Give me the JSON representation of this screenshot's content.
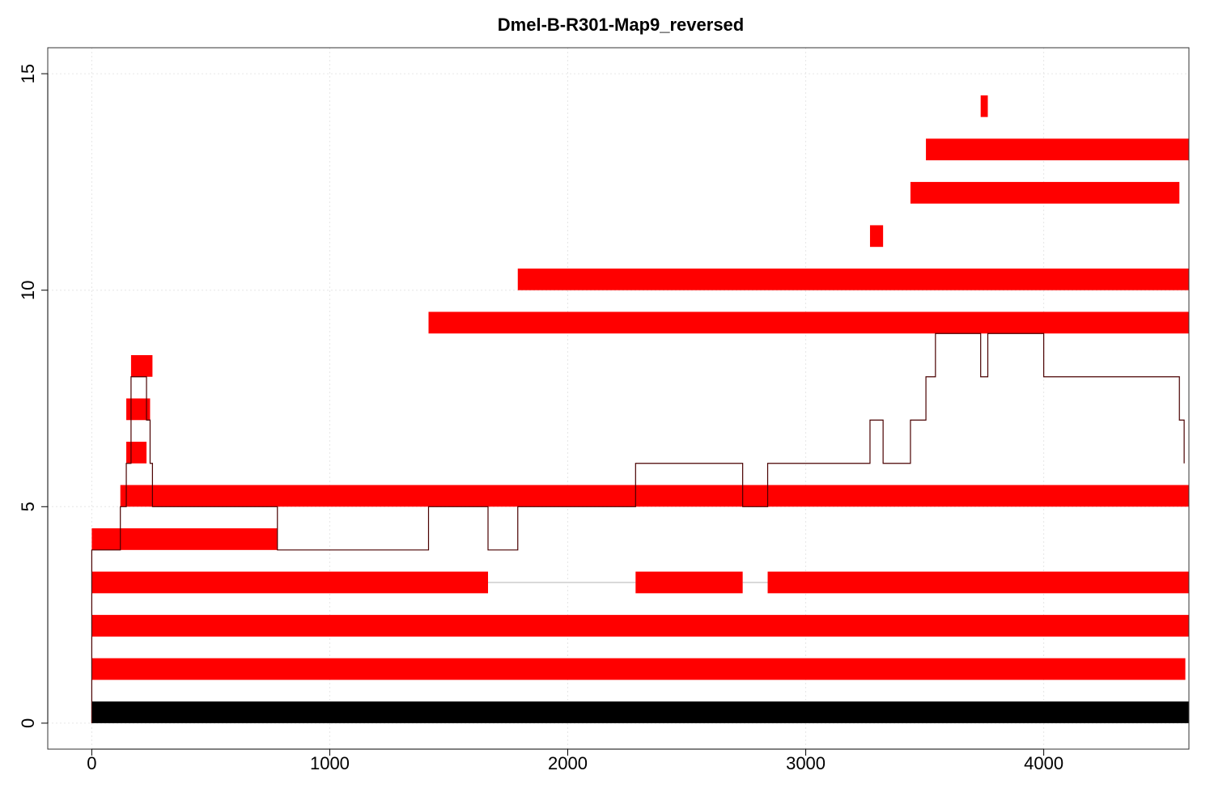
{
  "chart_data": {
    "type": "bar",
    "title": "Dmel-B-R301-Map9_reversed",
    "xlabel": "",
    "ylabel": "",
    "xlim": [
      -185,
      4610
    ],
    "ylim": [
      -0.6,
      15.6
    ],
    "xticks": [
      0,
      1000,
      2000,
      3000,
      4000
    ],
    "yticks": [
      0,
      5,
      10,
      15
    ],
    "grid": true,
    "colors": {
      "reference": "#000000",
      "segment": "#ff0000",
      "gap_line": "#d9d9d9",
      "coverage": "#4a0000"
    },
    "reference_bar": {
      "row": 0,
      "start": 0,
      "end": 4610
    },
    "segments": [
      {
        "row": 1,
        "start": 0,
        "end": 4595
      },
      {
        "row": 2,
        "start": 0,
        "end": 4610
      },
      {
        "row": 3,
        "start": 0,
        "end": 1665
      },
      {
        "row": 3,
        "start": 2285,
        "end": 2735
      },
      {
        "row": 3,
        "start": 2840,
        "end": 4610
      },
      {
        "row": 4,
        "start": 0,
        "end": 780
      },
      {
        "row": 5,
        "start": 120,
        "end": 4610
      },
      {
        "row": 6,
        "start": 145,
        "end": 230
      },
      {
        "row": 7,
        "start": 145,
        "end": 245
      },
      {
        "row": 8,
        "start": 165,
        "end": 255
      },
      {
        "row": 9,
        "start": 1415,
        "end": 4610
      },
      {
        "row": 10,
        "start": 1790,
        "end": 4610
      },
      {
        "row": 11,
        "start": 3270,
        "end": 3325
      },
      {
        "row": 12,
        "start": 3440,
        "end": 4570
      },
      {
        "row": 13,
        "start": 3505,
        "end": 4610
      },
      {
        "row": 14,
        "start": 3735,
        "end": 3765
      }
    ],
    "gaps": [
      {
        "row": 3,
        "start": 1665,
        "end": 2285
      },
      {
        "row": 3,
        "start": 2735,
        "end": 2840
      }
    ],
    "coverage": {
      "x": [
        0,
        0,
        120,
        120,
        145,
        145,
        165,
        165,
        230,
        230,
        245,
        245,
        255,
        255,
        780,
        780,
        1415,
        1415,
        1665,
        1665,
        1790,
        1790,
        2285,
        2285,
        2735,
        2735,
        2840,
        2840,
        3270,
        3270,
        3325,
        3325,
        3440,
        3440,
        3505,
        3505,
        3545,
        3545,
        3735,
        3735,
        3765,
        3765,
        4000,
        4000,
        4570,
        4570,
        4590,
        4590
      ],
      "y": [
        0,
        4,
        4,
        5,
        5,
        6,
        6,
        8,
        8,
        7,
        7,
        6,
        6,
        5,
        5,
        4,
        4,
        5,
        5,
        4,
        4,
        5,
        5,
        6,
        6,
        5,
        5,
        6,
        6,
        7,
        7,
        6,
        6,
        7,
        7,
        8,
        8,
        9,
        9,
        8,
        8,
        9,
        9,
        8,
        8,
        7,
        7,
        6
      ]
    }
  }
}
